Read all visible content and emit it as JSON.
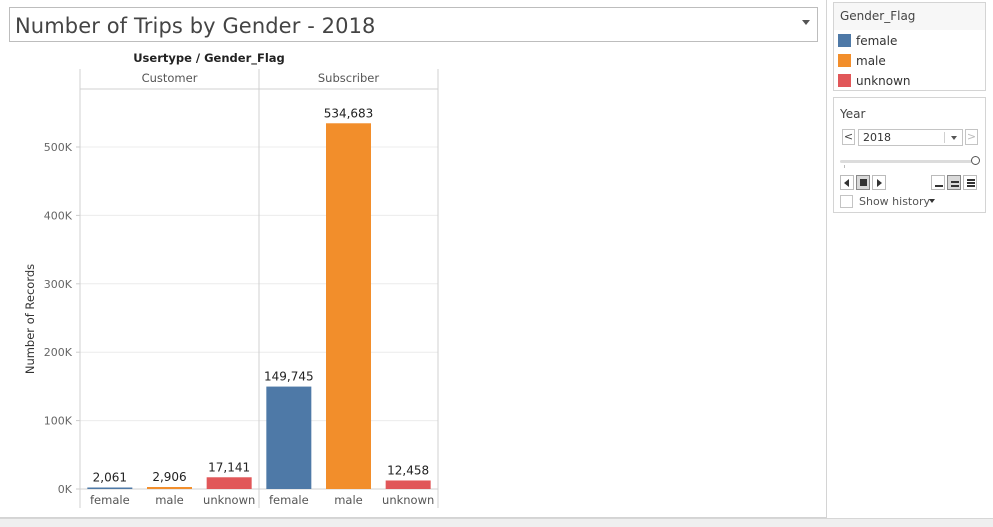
{
  "title": "Number of Trips by Gender - 2018",
  "colors": {
    "female": "#4e79a7",
    "male": "#f28e2b",
    "unknown": "#e15759"
  },
  "chart_data": {
    "type": "bar",
    "column_header": "Usertype / Gender_Flag",
    "ylabel": "Number of Records",
    "ylim": [
      0,
      560000
    ],
    "yticks": [
      0,
      100000,
      200000,
      300000,
      400000,
      500000
    ],
    "ytick_labels": [
      "0K",
      "100K",
      "200K",
      "300K",
      "400K",
      "500K"
    ],
    "groups": [
      {
        "name": "Customer",
        "bars": [
          {
            "category": "female",
            "value": 2061,
            "label": "2,061"
          },
          {
            "category": "male",
            "value": 2906,
            "label": "2,906"
          },
          {
            "category": "unknown",
            "value": 17141,
            "label": "17,141"
          }
        ]
      },
      {
        "name": "Subscriber",
        "bars": [
          {
            "category": "female",
            "value": 149745,
            "label": "149,745"
          },
          {
            "category": "male",
            "value": 534683,
            "label": "534,683"
          },
          {
            "category": "unknown",
            "value": 12458,
            "label": "12,458"
          }
        ]
      }
    ],
    "grid": true
  },
  "legend": {
    "title": "Gender_Flag",
    "items": [
      {
        "label": "female",
        "color": "#4e79a7"
      },
      {
        "label": "male",
        "color": "#f28e2b"
      },
      {
        "label": "unknown",
        "color": "#e15759"
      }
    ]
  },
  "year_filter": {
    "title": "Year",
    "selected": "2018",
    "prev": "<",
    "next": ">",
    "show_history": "Show history"
  }
}
